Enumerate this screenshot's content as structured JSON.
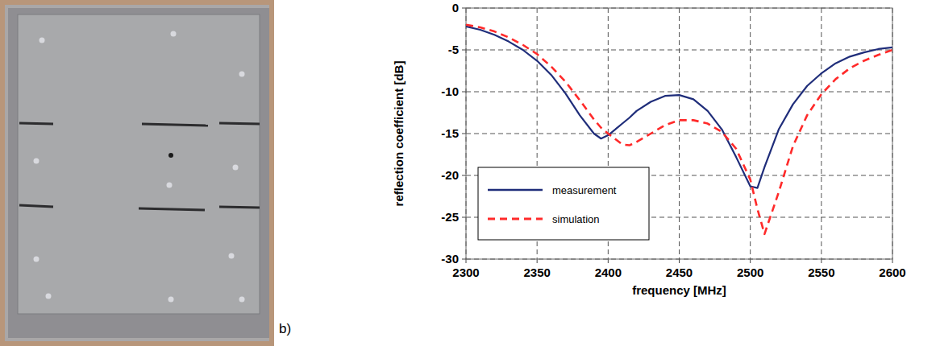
{
  "panel_label": "b)",
  "chart_data": {
    "type": "line",
    "x_label": "frequency [MHz]",
    "y_label": "reflection coefficient [dB]",
    "x": [
      2300,
      2310,
      2320,
      2330,
      2340,
      2350,
      2360,
      2370,
      2380,
      2390,
      2395,
      2400,
      2410,
      2415,
      2420,
      2430,
      2440,
      2450,
      2460,
      2470,
      2480,
      2490,
      2500,
      2505,
      2510,
      2520,
      2530,
      2540,
      2550,
      2560,
      2570,
      2580,
      2590,
      2600
    ],
    "series": [
      {
        "name": "measurement",
        "color": "#1f2d7a",
        "line_style": "solid",
        "values": [
          -2.2,
          -2.6,
          -3.2,
          -4.0,
          -5.0,
          -6.3,
          -8.0,
          -10.2,
          -12.8,
          -15.0,
          -15.6,
          -15.2,
          -13.8,
          -13.1,
          -12.3,
          -11.2,
          -10.5,
          -10.4,
          -10.9,
          -12.3,
          -14.5,
          -17.8,
          -21.3,
          -21.5,
          -19.0,
          -14.5,
          -11.5,
          -9.3,
          -7.8,
          -6.6,
          -5.8,
          -5.3,
          -4.9,
          -4.7
        ]
      },
      {
        "name": "simulation",
        "color": "#ff2a2a",
        "line_style": "dashed",
        "values": [
          -2.0,
          -2.3,
          -2.8,
          -3.5,
          -4.4,
          -5.5,
          -7.0,
          -8.8,
          -11.0,
          -13.3,
          -14.3,
          -15.0,
          -16.3,
          -16.4,
          -16.0,
          -15.0,
          -14.0,
          -13.4,
          -13.4,
          -13.8,
          -14.8,
          -16.8,
          -20.5,
          -24.0,
          -27.0,
          -22.0,
          -16.5,
          -12.8,
          -10.3,
          -8.5,
          -7.2,
          -6.3,
          -5.6,
          -5.0
        ]
      }
    ],
    "xlim": [
      2300,
      2600
    ],
    "xticks": [
      2300,
      2350,
      2400,
      2450,
      2500,
      2550,
      2600
    ],
    "ylim": [
      -30,
      0
    ],
    "yticks": [
      -30,
      -25,
      -20,
      -15,
      -10,
      -5,
      0
    ],
    "grid": true,
    "legend": "lower left"
  }
}
